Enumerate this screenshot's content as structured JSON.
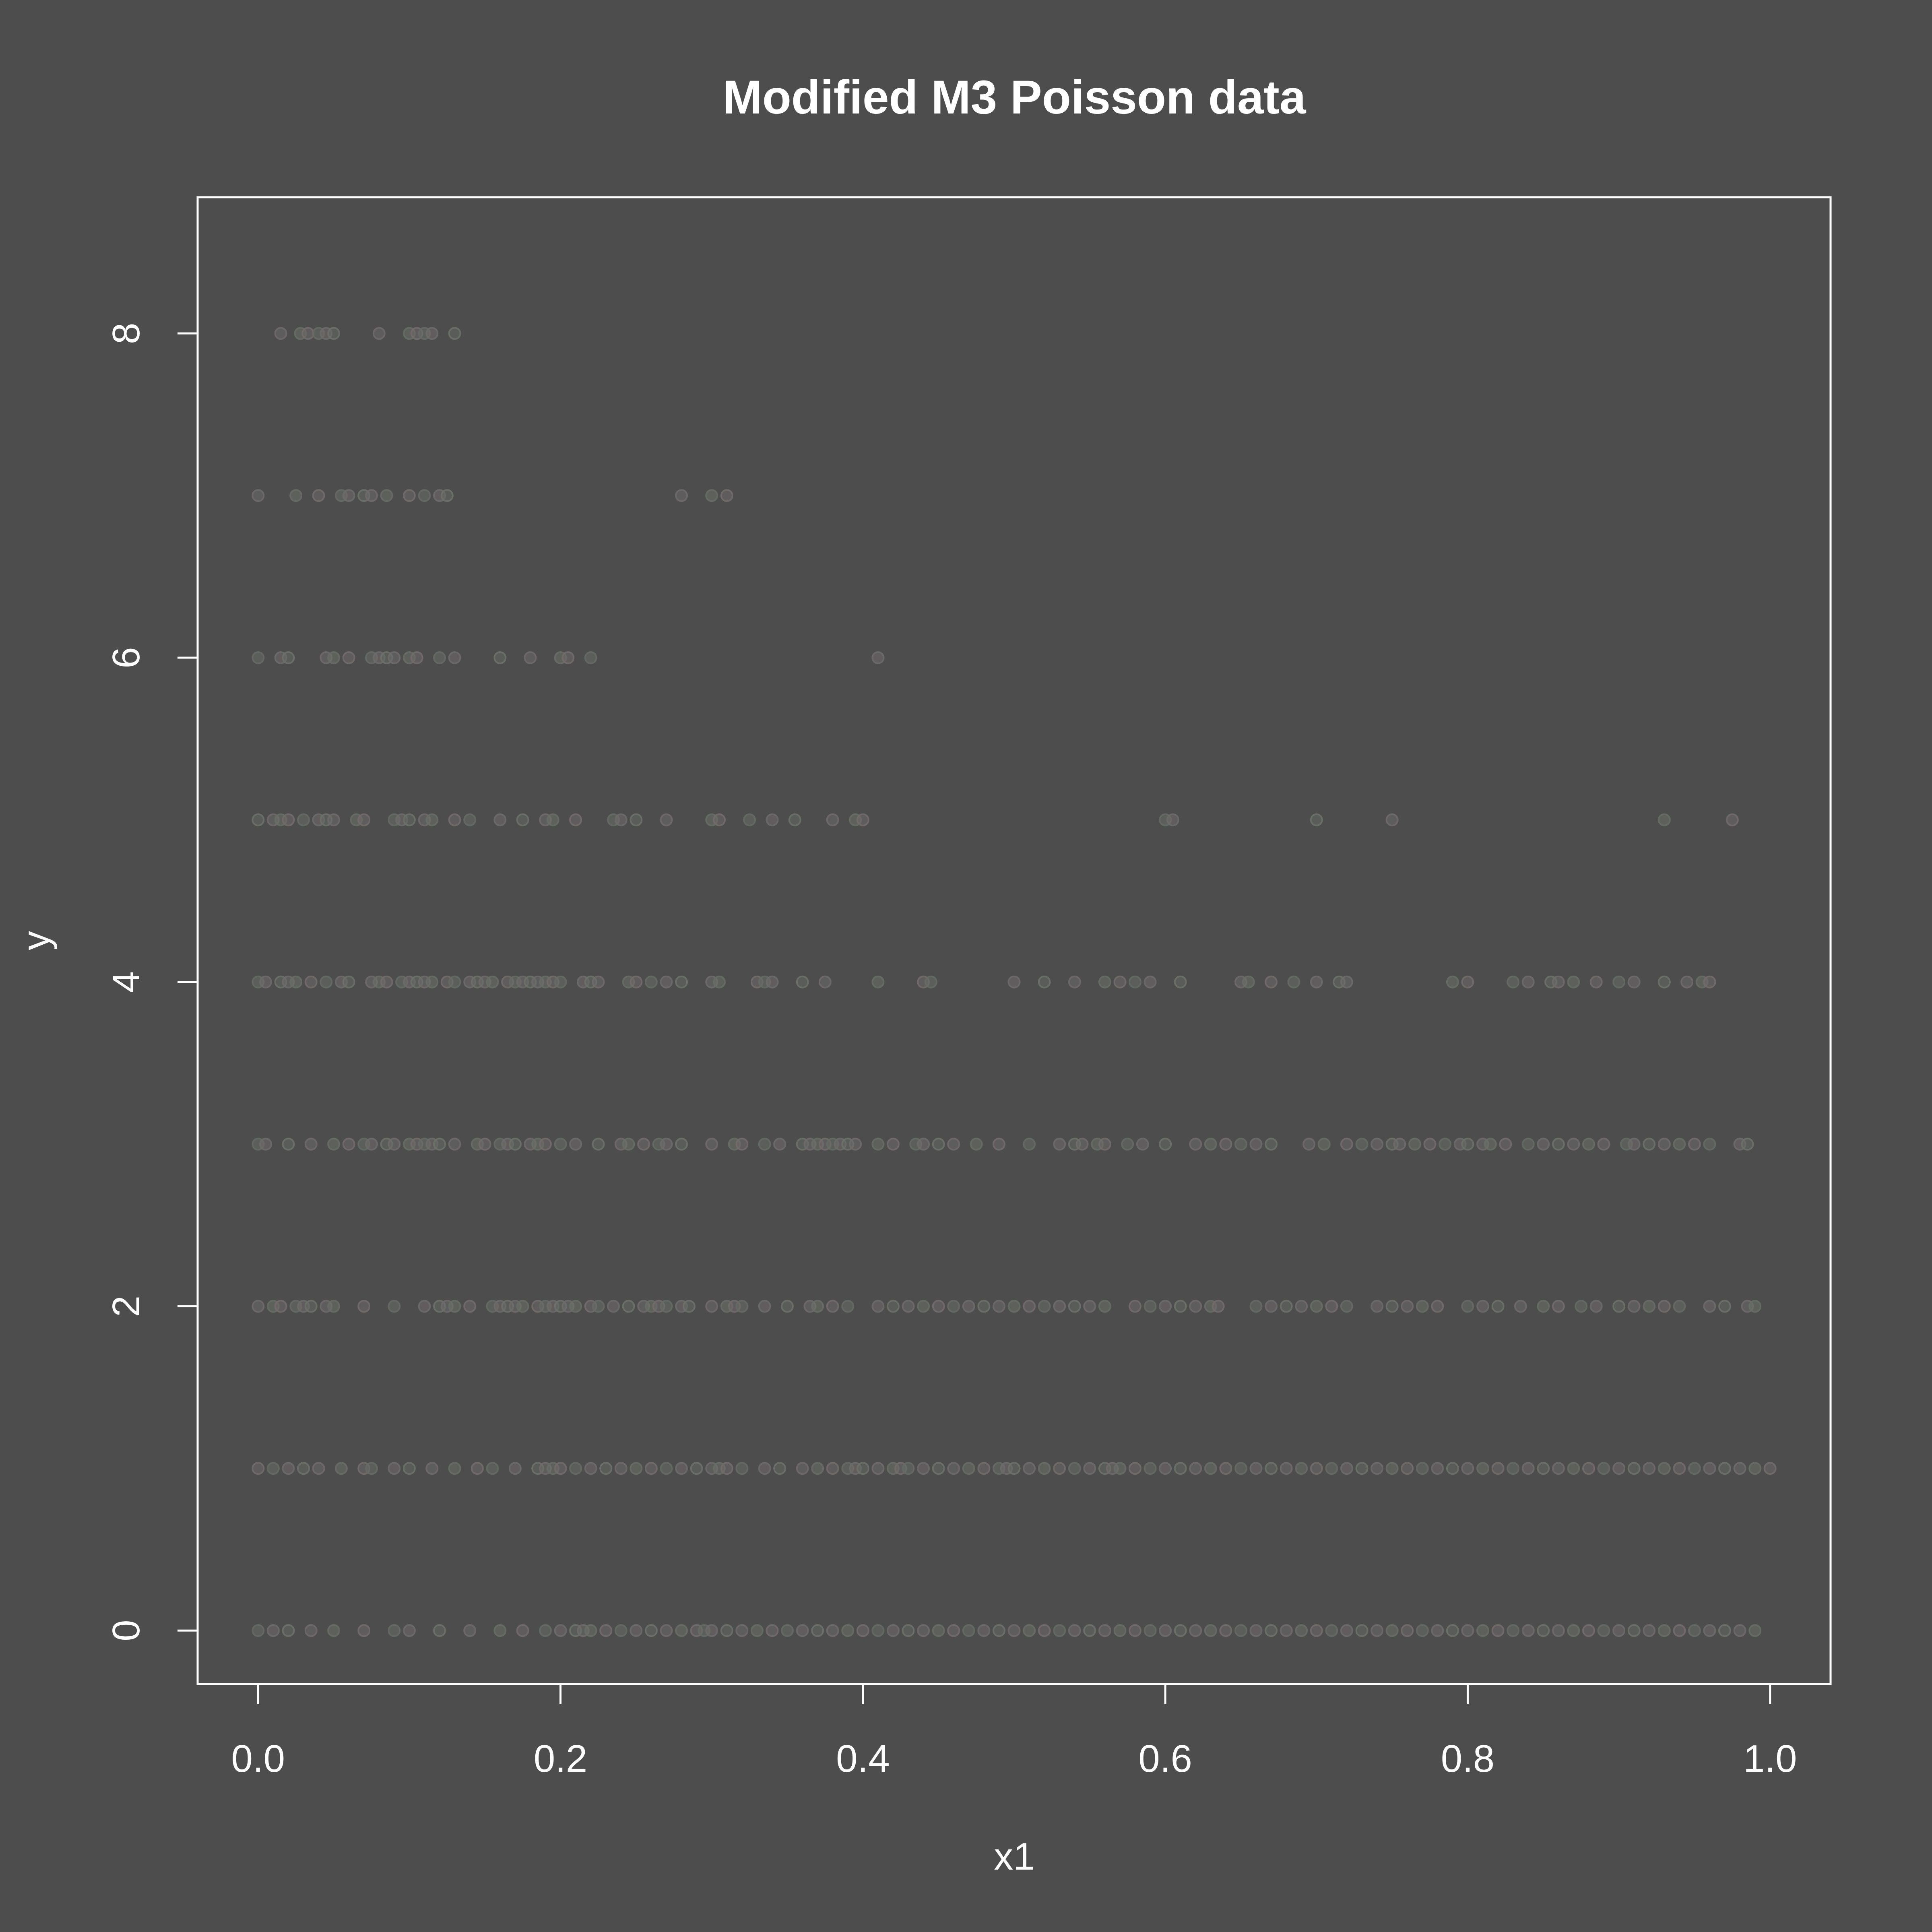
{
  "chart_data": {
    "type": "scatter",
    "title": "Modified M3 Poisson data",
    "xlabel": "x1",
    "ylabel": "y",
    "xlim": [
      -0.04,
      1.04
    ],
    "ylim": [
      -0.33,
      8.84
    ],
    "x_ticks": [
      {
        "value": 0.0,
        "label": "0.0"
      },
      {
        "value": 0.2,
        "label": "0.2"
      },
      {
        "value": 0.4,
        "label": "0.4"
      },
      {
        "value": 0.6,
        "label": "0.6"
      },
      {
        "value": 0.8,
        "label": "0.8"
      },
      {
        "value": 1.0,
        "label": "1.0"
      }
    ],
    "y_ticks": [
      {
        "value": 0,
        "label": "0"
      },
      {
        "value": 2,
        "label": "2"
      },
      {
        "value": 4,
        "label": "4"
      },
      {
        "value": 6,
        "label": "6"
      },
      {
        "value": 8,
        "label": "8"
      }
    ],
    "grid": false,
    "legend": "none",
    "colors": {
      "background": "#4d4d4d",
      "foreground": "#ffffff",
      "point_palette": [
        "#6b6b6b",
        "#6e716a",
        "#6f6a6c",
        "#686d66",
        "#726b6d",
        "#666a66"
      ]
    },
    "point_opacity": 0.25,
    "series": [
      {
        "y": 8,
        "x": [
          0.015,
          0.028,
          0.033,
          0.04,
          0.045,
          0.05,
          0.08,
          0.1,
          0.105,
          0.11,
          0.115,
          0.13
        ]
      },
      {
        "y": 7,
        "x": [
          0.0,
          0.025,
          0.04,
          0.055,
          0.06,
          0.07,
          0.075,
          0.085,
          0.1,
          0.11,
          0.12,
          0.125,
          0.28,
          0.3,
          0.31
        ]
      },
      {
        "y": 6,
        "x": [
          0.0,
          0.015,
          0.02,
          0.045,
          0.05,
          0.06,
          0.075,
          0.08,
          0.085,
          0.09,
          0.1,
          0.105,
          0.12,
          0.13,
          0.16,
          0.18,
          0.2,
          0.205,
          0.22,
          0.41
        ]
      },
      {
        "y": 5,
        "x": [
          0.0,
          0.01,
          0.015,
          0.02,
          0.03,
          0.04,
          0.045,
          0.05,
          0.065,
          0.07,
          0.09,
          0.095,
          0.1,
          0.11,
          0.115,
          0.13,
          0.14,
          0.16,
          0.175,
          0.19,
          0.195,
          0.21,
          0.235,
          0.24,
          0.25,
          0.27,
          0.3,
          0.305,
          0.325,
          0.34,
          0.355,
          0.38,
          0.395,
          0.4,
          0.6,
          0.605,
          0.7,
          0.75,
          0.93,
          0.975
        ]
      },
      {
        "y": 4,
        "x": [
          0.0,
          0.005,
          0.015,
          0.02,
          0.025,
          0.035,
          0.045,
          0.055,
          0.06,
          0.075,
          0.08,
          0.085,
          0.095,
          0.1,
          0.105,
          0.11,
          0.115,
          0.125,
          0.13,
          0.14,
          0.145,
          0.15,
          0.155,
          0.165,
          0.17,
          0.175,
          0.18,
          0.185,
          0.19,
          0.195,
          0.2,
          0.215,
          0.22,
          0.225,
          0.245,
          0.25,
          0.26,
          0.27,
          0.28,
          0.3,
          0.305,
          0.33,
          0.335,
          0.34,
          0.36,
          0.375,
          0.41,
          0.44,
          0.445,
          0.5,
          0.52,
          0.54,
          0.56,
          0.57,
          0.58,
          0.59,
          0.61,
          0.65,
          0.655,
          0.67,
          0.685,
          0.7,
          0.715,
          0.72,
          0.79,
          0.8,
          0.83,
          0.84,
          0.855,
          0.86,
          0.87,
          0.885,
          0.9,
          0.91,
          0.93,
          0.945,
          0.955,
          0.96
        ]
      },
      {
        "y": 3,
        "x": [
          0.0,
          0.005,
          0.02,
          0.035,
          0.05,
          0.06,
          0.07,
          0.075,
          0.085,
          0.09,
          0.1,
          0.105,
          0.11,
          0.115,
          0.12,
          0.13,
          0.145,
          0.15,
          0.16,
          0.165,
          0.17,
          0.18,
          0.185,
          0.19,
          0.2,
          0.21,
          0.225,
          0.24,
          0.245,
          0.255,
          0.265,
          0.27,
          0.28,
          0.3,
          0.315,
          0.32,
          0.335,
          0.345,
          0.36,
          0.365,
          0.37,
          0.375,
          0.38,
          0.385,
          0.39,
          0.395,
          0.41,
          0.42,
          0.435,
          0.44,
          0.45,
          0.46,
          0.475,
          0.49,
          0.51,
          0.53,
          0.54,
          0.545,
          0.555,
          0.56,
          0.575,
          0.585,
          0.6,
          0.62,
          0.63,
          0.64,
          0.65,
          0.66,
          0.67,
          0.695,
          0.705,
          0.72,
          0.73,
          0.74,
          0.75,
          0.755,
          0.765,
          0.775,
          0.785,
          0.795,
          0.8,
          0.81,
          0.815,
          0.825,
          0.84,
          0.85,
          0.86,
          0.87,
          0.88,
          0.89,
          0.905,
          0.91,
          0.92,
          0.93,
          0.94,
          0.95,
          0.96,
          0.98,
          0.985
        ]
      },
      {
        "y": 2,
        "x": [
          0.0,
          0.01,
          0.015,
          0.025,
          0.03,
          0.035,
          0.045,
          0.05,
          0.07,
          0.09,
          0.11,
          0.12,
          0.125,
          0.13,
          0.14,
          0.155,
          0.16,
          0.165,
          0.17,
          0.175,
          0.185,
          0.19,
          0.195,
          0.2,
          0.205,
          0.21,
          0.22,
          0.225,
          0.235,
          0.245,
          0.255,
          0.26,
          0.265,
          0.27,
          0.28,
          0.285,
          0.3,
          0.31,
          0.315,
          0.32,
          0.335,
          0.35,
          0.365,
          0.37,
          0.38,
          0.39,
          0.41,
          0.42,
          0.43,
          0.44,
          0.45,
          0.46,
          0.47,
          0.48,
          0.49,
          0.5,
          0.51,
          0.52,
          0.53,
          0.54,
          0.55,
          0.56,
          0.58,
          0.59,
          0.6,
          0.61,
          0.62,
          0.63,
          0.635,
          0.66,
          0.67,
          0.68,
          0.69,
          0.7,
          0.71,
          0.72,
          0.74,
          0.75,
          0.76,
          0.77,
          0.78,
          0.8,
          0.81,
          0.82,
          0.835,
          0.85,
          0.86,
          0.875,
          0.885,
          0.9,
          0.91,
          0.92,
          0.93,
          0.94,
          0.96,
          0.97,
          0.985,
          0.99
        ]
      },
      {
        "y": 1,
        "x": [
          0.0,
          0.01,
          0.02,
          0.03,
          0.04,
          0.055,
          0.07,
          0.075,
          0.09,
          0.1,
          0.115,
          0.13,
          0.145,
          0.155,
          0.17,
          0.185,
          0.19,
          0.195,
          0.2,
          0.21,
          0.22,
          0.23,
          0.24,
          0.25,
          0.26,
          0.27,
          0.28,
          0.29,
          0.3,
          0.305,
          0.31,
          0.32,
          0.335,
          0.345,
          0.36,
          0.37,
          0.38,
          0.39,
          0.395,
          0.4,
          0.41,
          0.42,
          0.425,
          0.43,
          0.44,
          0.45,
          0.46,
          0.47,
          0.48,
          0.49,
          0.495,
          0.5,
          0.51,
          0.52,
          0.53,
          0.54,
          0.55,
          0.56,
          0.565,
          0.57,
          0.58,
          0.59,
          0.6,
          0.61,
          0.62,
          0.63,
          0.64,
          0.65,
          0.66,
          0.67,
          0.68,
          0.69,
          0.7,
          0.71,
          0.72,
          0.73,
          0.74,
          0.75,
          0.76,
          0.77,
          0.78,
          0.79,
          0.8,
          0.81,
          0.82,
          0.83,
          0.84,
          0.85,
          0.86,
          0.87,
          0.88,
          0.89,
          0.9,
          0.91,
          0.92,
          0.93,
          0.94,
          0.95,
          0.96,
          0.97,
          0.98,
          0.99,
          1.0
        ]
      },
      {
        "y": 0,
        "x": [
          0.0,
          0.01,
          0.02,
          0.035,
          0.05,
          0.07,
          0.09,
          0.1,
          0.12,
          0.14,
          0.16,
          0.175,
          0.19,
          0.2,
          0.21,
          0.215,
          0.22,
          0.23,
          0.24,
          0.25,
          0.26,
          0.27,
          0.28,
          0.29,
          0.295,
          0.3,
          0.31,
          0.32,
          0.33,
          0.34,
          0.35,
          0.36,
          0.37,
          0.38,
          0.39,
          0.4,
          0.41,
          0.42,
          0.43,
          0.44,
          0.45,
          0.46,
          0.47,
          0.48,
          0.49,
          0.5,
          0.51,
          0.52,
          0.53,
          0.54,
          0.55,
          0.56,
          0.57,
          0.58,
          0.59,
          0.6,
          0.61,
          0.62,
          0.63,
          0.64,
          0.65,
          0.66,
          0.67,
          0.68,
          0.69,
          0.7,
          0.71,
          0.72,
          0.73,
          0.74,
          0.75,
          0.76,
          0.77,
          0.78,
          0.79,
          0.8,
          0.81,
          0.82,
          0.83,
          0.84,
          0.85,
          0.86,
          0.87,
          0.88,
          0.89,
          0.9,
          0.91,
          0.92,
          0.93,
          0.94,
          0.95,
          0.96,
          0.97,
          0.98,
          0.99
        ]
      }
    ]
  }
}
